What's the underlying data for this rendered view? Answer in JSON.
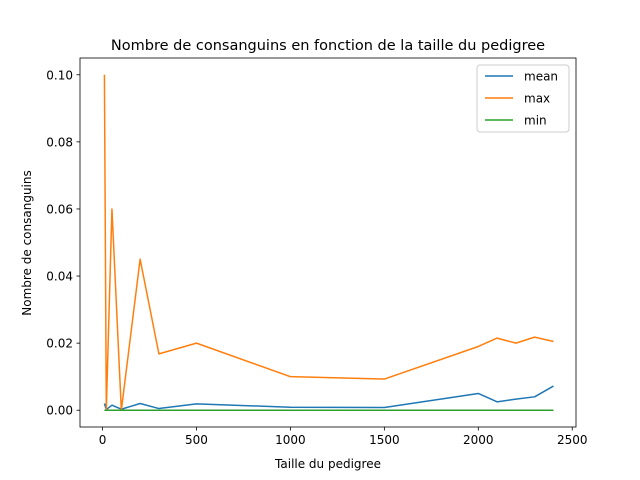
{
  "chart_data": {
    "type": "line",
    "title": "Nombre de consanguins en fonction de la taille du pedigree",
    "xlabel": "Taille du pedigree",
    "ylabel": "Nombre de consanguins",
    "xlim": [
      -120,
      2520
    ],
    "ylim": [
      -0.005,
      0.105
    ],
    "xticks": [
      0,
      500,
      1000,
      1500,
      2000,
      2500
    ],
    "xtick_labels": [
      "0",
      "500",
      "1000",
      "1500",
      "2000",
      "2500"
    ],
    "yticks": [
      0.0,
      0.02,
      0.04,
      0.06,
      0.08,
      0.1
    ],
    "ytick_labels": [
      "0.00",
      "0.02",
      "0.04",
      "0.06",
      "0.08",
      "0.10"
    ],
    "grid": false,
    "legend_position": "top-right",
    "x": [
      10,
      20,
      50,
      100,
      200,
      300,
      500,
      1000,
      1500,
      2000,
      2100,
      2200,
      2300,
      2400
    ],
    "series": [
      {
        "name": "mean",
        "color": "#1f77b4",
        "values": [
          0.002,
          0.0002,
          0.0015,
          0.0003,
          0.002,
          0.0005,
          0.0019,
          0.0009,
          0.0008,
          0.005,
          0.0025,
          0.0033,
          0.004,
          0.0072
        ]
      },
      {
        "name": "max",
        "color": "#ff7f0e",
        "values": [
          0.1,
          0.0,
          0.06,
          0.0,
          0.045,
          0.0168,
          0.02,
          0.01,
          0.0093,
          0.019,
          0.0215,
          0.02,
          0.0218,
          0.0205
        ]
      },
      {
        "name": "min",
        "color": "#2ca02c",
        "values": [
          0.0,
          0.0,
          0.0,
          0.0,
          0.0,
          0.0,
          0.0,
          0.0,
          0.0,
          0.0,
          0.0,
          0.0,
          0.0,
          0.0
        ]
      }
    ]
  }
}
